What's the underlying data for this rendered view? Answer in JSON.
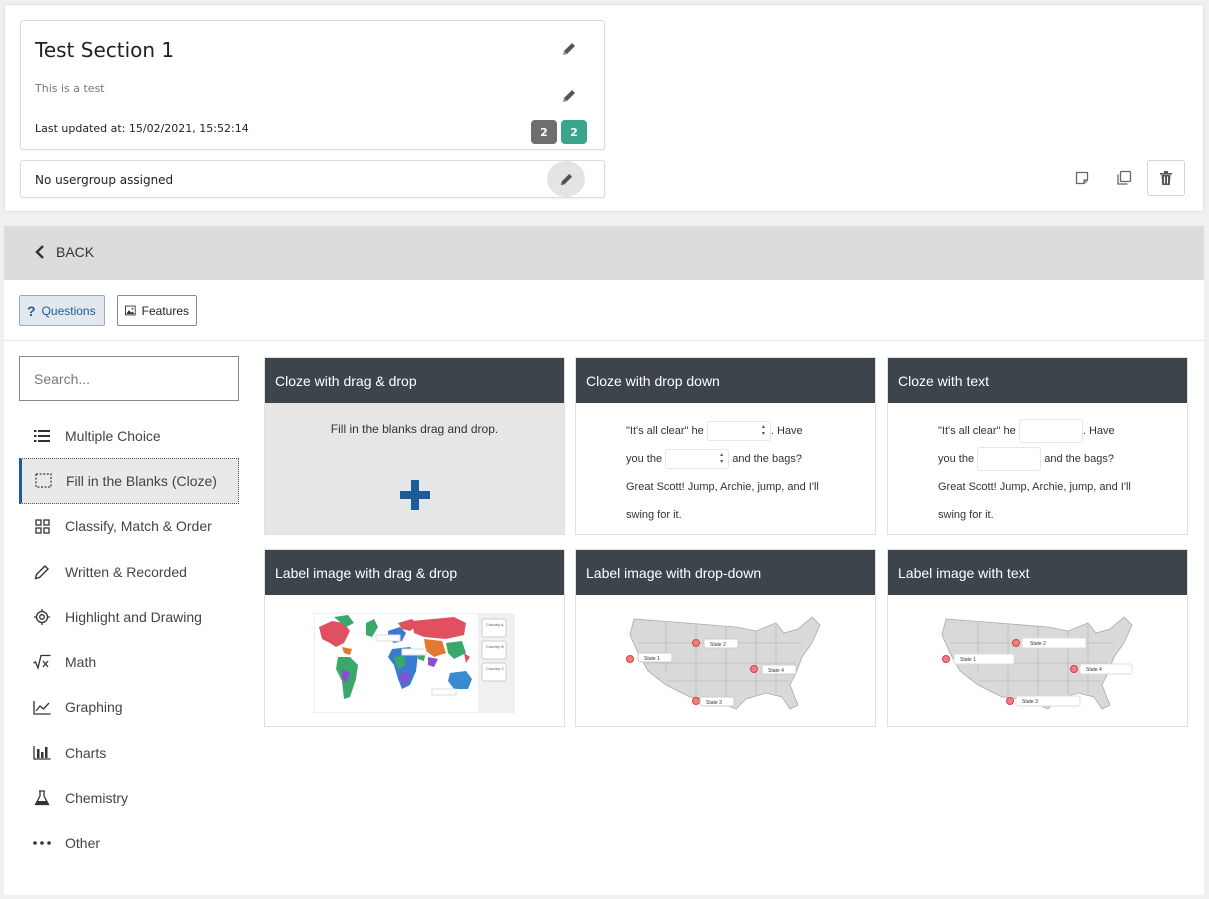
{
  "section": {
    "title": "Test Section 1",
    "description": "This is a test",
    "last_updated": "Last updated at: 15/02/2021, 15:52:14",
    "badge_grey": "2",
    "badge_green": "2",
    "usergroup": "No usergroup assigned"
  },
  "nav": {
    "back_label": "BACK"
  },
  "tabs": {
    "questions": "Questions",
    "features": "Features"
  },
  "search": {
    "placeholder": "Search..."
  },
  "categories": [
    {
      "label": "Multiple Choice",
      "icon": "list-icon"
    },
    {
      "label": "Fill in the Blanks (Cloze)",
      "icon": "dashed-box-icon"
    },
    {
      "label": "Classify, Match & Order",
      "icon": "grid-icon"
    },
    {
      "label": "Written & Recorded",
      "icon": "pencil-icon"
    },
    {
      "label": "Highlight and Drawing",
      "icon": "target-icon"
    },
    {
      "label": "Math",
      "icon": "sqrt-icon"
    },
    {
      "label": "Graphing",
      "icon": "line-graph-icon"
    },
    {
      "label": "Charts",
      "icon": "bar-chart-icon"
    },
    {
      "label": "Chemistry",
      "icon": "flask-icon"
    },
    {
      "label": "Other",
      "icon": "ellipsis-icon"
    }
  ],
  "tiles": {
    "cloze_drag": {
      "title": "Cloze with drag & drop",
      "body": "Fill in the blanks drag and drop."
    },
    "cloze_dropdown": {
      "title": "Cloze with drop down"
    },
    "cloze_text": {
      "title": "Cloze with text"
    },
    "label_drag": {
      "title": "Label image with drag & drop",
      "countries": [
        "Country A",
        "Country B",
        "Country C"
      ]
    },
    "label_dropdown": {
      "title": "Label image with drop-down",
      "states": [
        "State 1",
        "State 2",
        "State 3",
        "State 4"
      ]
    },
    "label_text": {
      "title": "Label image with text",
      "states": [
        "State 1",
        "State 2",
        "State 3",
        "State 4"
      ]
    }
  },
  "cloze_sample": {
    "part1": "\"It's all clear\" he",
    "part2": ". Have",
    "part3": "you the",
    "part4": "and the bags?",
    "part5": "Great Scott! Jump, Archie, jump, and I'll",
    "part6": "swing for it."
  },
  "colors": {
    "accent": "#1c5d99",
    "tile_header": "#3d444c",
    "badge_grey": "#6e6e6e",
    "badge_green": "#3aa58a"
  }
}
